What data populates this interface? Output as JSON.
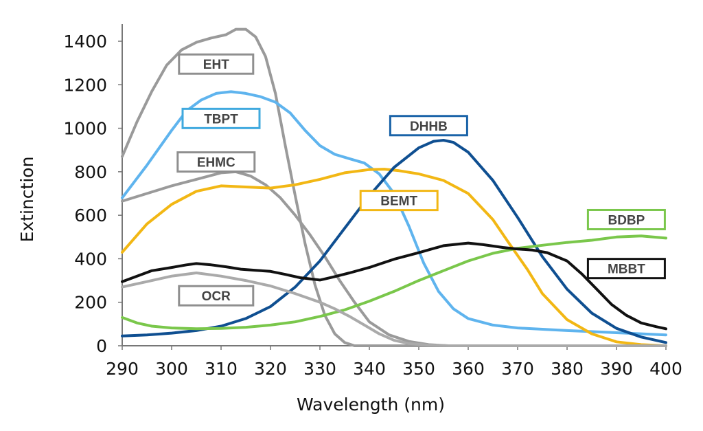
{
  "chart_data": {
    "type": "line",
    "title": "",
    "xlabel": "Wavelength (nm)",
    "ylabel": "Extinction",
    "xlim": [
      290,
      400
    ],
    "ylim": [
      0,
      1400
    ],
    "x_ticks": [
      290,
      300,
      310,
      320,
      330,
      340,
      350,
      360,
      370,
      380,
      390,
      400
    ],
    "y_ticks": [
      0,
      200,
      400,
      600,
      800,
      1000,
      1200,
      1400
    ],
    "grid": false,
    "legend": "inline boxed labels",
    "series": [
      {
        "name": "EHT",
        "color": "#9a9a9a",
        "box_color": "#8f8f8f",
        "points": [
          [
            290,
            870
          ],
          [
            293,
            1030
          ],
          [
            296,
            1170
          ],
          [
            299,
            1290
          ],
          [
            302,
            1360
          ],
          [
            305,
            1395
          ],
          [
            308,
            1415
          ],
          [
            311,
            1430
          ],
          [
            313,
            1455
          ],
          [
            315,
            1455
          ],
          [
            317,
            1420
          ],
          [
            319,
            1330
          ],
          [
            321,
            1160
          ],
          [
            323,
            920
          ],
          [
            325,
            690
          ],
          [
            327,
            470
          ],
          [
            329,
            280
          ],
          [
            331,
            140
          ],
          [
            333,
            55
          ],
          [
            335,
            15
          ],
          [
            337,
            0
          ],
          [
            345,
            0
          ],
          [
            400,
            0
          ]
        ]
      },
      {
        "name": "TBPT",
        "color": "#5fb4ee",
        "box_color": "#3fa9de",
        "points": [
          [
            290,
            680
          ],
          [
            295,
            830
          ],
          [
            300,
            990
          ],
          [
            303,
            1080
          ],
          [
            306,
            1130
          ],
          [
            309,
            1160
          ],
          [
            312,
            1168
          ],
          [
            315,
            1160
          ],
          [
            318,
            1145
          ],
          [
            321,
            1120
          ],
          [
            324,
            1070
          ],
          [
            327,
            990
          ],
          [
            330,
            920
          ],
          [
            333,
            880
          ],
          [
            336,
            860
          ],
          [
            339,
            840
          ],
          [
            342,
            790
          ],
          [
            345,
            700
          ],
          [
            348,
            550
          ],
          [
            351,
            380
          ],
          [
            354,
            250
          ],
          [
            357,
            170
          ],
          [
            360,
            125
          ],
          [
            365,
            95
          ],
          [
            370,
            82
          ],
          [
            380,
            70
          ],
          [
            390,
            60
          ],
          [
            400,
            50
          ]
        ]
      },
      {
        "name": "EHMC",
        "color": "#9a9a9a",
        "box_color": "#8f8f8f",
        "points": [
          [
            290,
            665
          ],
          [
            295,
            700
          ],
          [
            300,
            735
          ],
          [
            305,
            765
          ],
          [
            310,
            795
          ],
          [
            313,
            800
          ],
          [
            316,
            780
          ],
          [
            319,
            740
          ],
          [
            322,
            680
          ],
          [
            325,
            600
          ],
          [
            328,
            510
          ],
          [
            331,
            410
          ],
          [
            334,
            300
          ],
          [
            337,
            200
          ],
          [
            340,
            110
          ],
          [
            344,
            50
          ],
          [
            348,
            20
          ],
          [
            352,
            5
          ],
          [
            356,
            0
          ],
          [
            400,
            0
          ]
        ]
      },
      {
        "name": "BEMT",
        "color": "#f2b714",
        "box_color": "#f2b714",
        "points": [
          [
            290,
            430
          ],
          [
            295,
            560
          ],
          [
            300,
            650
          ],
          [
            305,
            710
          ],
          [
            310,
            735
          ],
          [
            315,
            730
          ],
          [
            320,
            725
          ],
          [
            325,
            740
          ],
          [
            330,
            765
          ],
          [
            335,
            795
          ],
          [
            340,
            810
          ],
          [
            343,
            812
          ],
          [
            346,
            805
          ],
          [
            350,
            790
          ],
          [
            355,
            760
          ],
          [
            360,
            700
          ],
          [
            365,
            580
          ],
          [
            368,
            480
          ],
          [
            372,
            350
          ],
          [
            375,
            240
          ],
          [
            380,
            120
          ],
          [
            385,
            55
          ],
          [
            390,
            18
          ],
          [
            395,
            5
          ],
          [
            400,
            0
          ]
        ]
      },
      {
        "name": "DHHB",
        "color": "#0f4f91",
        "box_color": "#1a63a8",
        "points": [
          [
            290,
            45
          ],
          [
            295,
            50
          ],
          [
            300,
            58
          ],
          [
            305,
            70
          ],
          [
            310,
            90
          ],
          [
            315,
            125
          ],
          [
            320,
            180
          ],
          [
            325,
            270
          ],
          [
            330,
            390
          ],
          [
            335,
            540
          ],
          [
            340,
            690
          ],
          [
            345,
            820
          ],
          [
            350,
            910
          ],
          [
            353,
            940
          ],
          [
            355,
            945
          ],
          [
            357,
            935
          ],
          [
            360,
            890
          ],
          [
            365,
            760
          ],
          [
            370,
            590
          ],
          [
            375,
            410
          ],
          [
            380,
            260
          ],
          [
            385,
            150
          ],
          [
            390,
            80
          ],
          [
            395,
            40
          ],
          [
            400,
            15
          ]
        ]
      },
      {
        "name": "BDBP",
        "color": "#7ac74b",
        "box_color": "#7ac74b",
        "points": [
          [
            290,
            130
          ],
          [
            293,
            105
          ],
          [
            296,
            90
          ],
          [
            300,
            82
          ],
          [
            305,
            78
          ],
          [
            310,
            80
          ],
          [
            315,
            85
          ],
          [
            320,
            95
          ],
          [
            325,
            110
          ],
          [
            330,
            135
          ],
          [
            335,
            165
          ],
          [
            340,
            205
          ],
          [
            345,
            250
          ],
          [
            350,
            300
          ],
          [
            355,
            345
          ],
          [
            360,
            390
          ],
          [
            365,
            425
          ],
          [
            370,
            448
          ],
          [
            375,
            462
          ],
          [
            380,
            475
          ],
          [
            385,
            485
          ],
          [
            390,
            500
          ],
          [
            395,
            505
          ],
          [
            400,
            495
          ]
        ]
      },
      {
        "name": "MBBT",
        "color": "#111111",
        "box_color": "#111111",
        "points": [
          [
            290,
            295
          ],
          [
            293,
            320
          ],
          [
            296,
            345
          ],
          [
            300,
            360
          ],
          [
            303,
            372
          ],
          [
            305,
            378
          ],
          [
            308,
            372
          ],
          [
            311,
            363
          ],
          [
            314,
            352
          ],
          [
            317,
            347
          ],
          [
            320,
            342
          ],
          [
            323,
            328
          ],
          [
            326,
            313
          ],
          [
            330,
            302
          ],
          [
            333,
            318
          ],
          [
            336,
            335
          ],
          [
            340,
            360
          ],
          [
            345,
            398
          ],
          [
            350,
            428
          ],
          [
            355,
            460
          ],
          [
            360,
            472
          ],
          [
            363,
            465
          ],
          [
            367,
            452
          ],
          [
            370,
            445
          ],
          [
            373,
            440
          ],
          [
            376,
            428
          ],
          [
            380,
            390
          ],
          [
            383,
            330
          ],
          [
            386,
            260
          ],
          [
            389,
            190
          ],
          [
            392,
            140
          ],
          [
            395,
            105
          ],
          [
            398,
            88
          ],
          [
            400,
            78
          ]
        ]
      },
      {
        "name": "OCR",
        "color": "#aaaaaa",
        "box_color": "#8f8f8f",
        "points": [
          [
            290,
            270
          ],
          [
            295,
            295
          ],
          [
            300,
            320
          ],
          [
            305,
            335
          ],
          [
            310,
            320
          ],
          [
            315,
            300
          ],
          [
            320,
            275
          ],
          [
            325,
            240
          ],
          [
            330,
            200
          ],
          [
            333,
            170
          ],
          [
            336,
            135
          ],
          [
            339,
            95
          ],
          [
            342,
            55
          ],
          [
            345,
            25
          ],
          [
            348,
            10
          ],
          [
            352,
            3
          ],
          [
            356,
            0
          ],
          [
            400,
            0
          ]
        ]
      }
    ],
    "label_boxes": [
      {
        "series": "EHT",
        "x": 309,
        "y": 1295,
        "w": 108
      },
      {
        "series": "TBPT",
        "x": 310,
        "y": 1045,
        "w": 112
      },
      {
        "series": "EHMC",
        "x": 309,
        "y": 845,
        "w": 112
      },
      {
        "series": "DHHB",
        "x": 352,
        "y": 1012,
        "w": 112
      },
      {
        "series": "BEMT",
        "x": 346,
        "y": 668,
        "w": 112
      },
      {
        "series": "BDBP",
        "x": 392,
        "y": 580,
        "w": 112
      },
      {
        "series": "MBBT",
        "x": 392,
        "y": 355,
        "w": 112
      },
      {
        "series": "OCR",
        "x": 309,
        "y": 230,
        "w": 108
      }
    ]
  }
}
